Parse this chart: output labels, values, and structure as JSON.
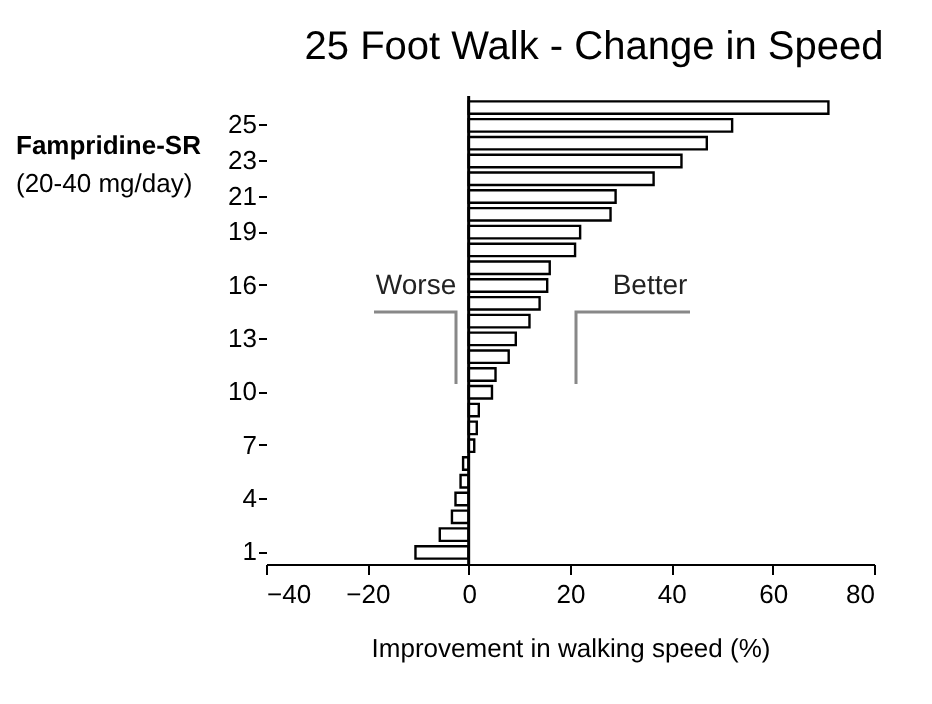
{
  "chart_data": {
    "type": "bar",
    "orientation": "horizontal",
    "title": "25 Foot Walk - Change in Speed",
    "xlabel": "Improvement in walking speed (%)",
    "ylabel": "Fampridine-SR\n(20-40 mg/day)",
    "categories": [
      null,
      "25",
      null,
      "23",
      null,
      "21",
      null,
      "19",
      null,
      null,
      "16",
      null,
      null,
      "13",
      null,
      null,
      "10",
      null,
      null,
      "7",
      null,
      null,
      "4",
      null,
      null,
      "1"
    ],
    "values": [
      71,
      52,
      47,
      42,
      36.5,
      29,
      28,
      22,
      21,
      16,
      15.5,
      14,
      12,
      9.3,
      7.9,
      5.3,
      4.6,
      2.0,
      1.6,
      1.1,
      -1.1,
      -1.6,
      -2.6,
      -3.3,
      -5.7,
      -10.5
    ],
    "color": "#ffffff",
    "xlim": [
      -40,
      80
    ],
    "xticks": [
      -40,
      -20,
      0,
      20,
      40,
      60,
      80
    ],
    "annotations": [
      "Worse",
      "Better"
    ]
  }
}
